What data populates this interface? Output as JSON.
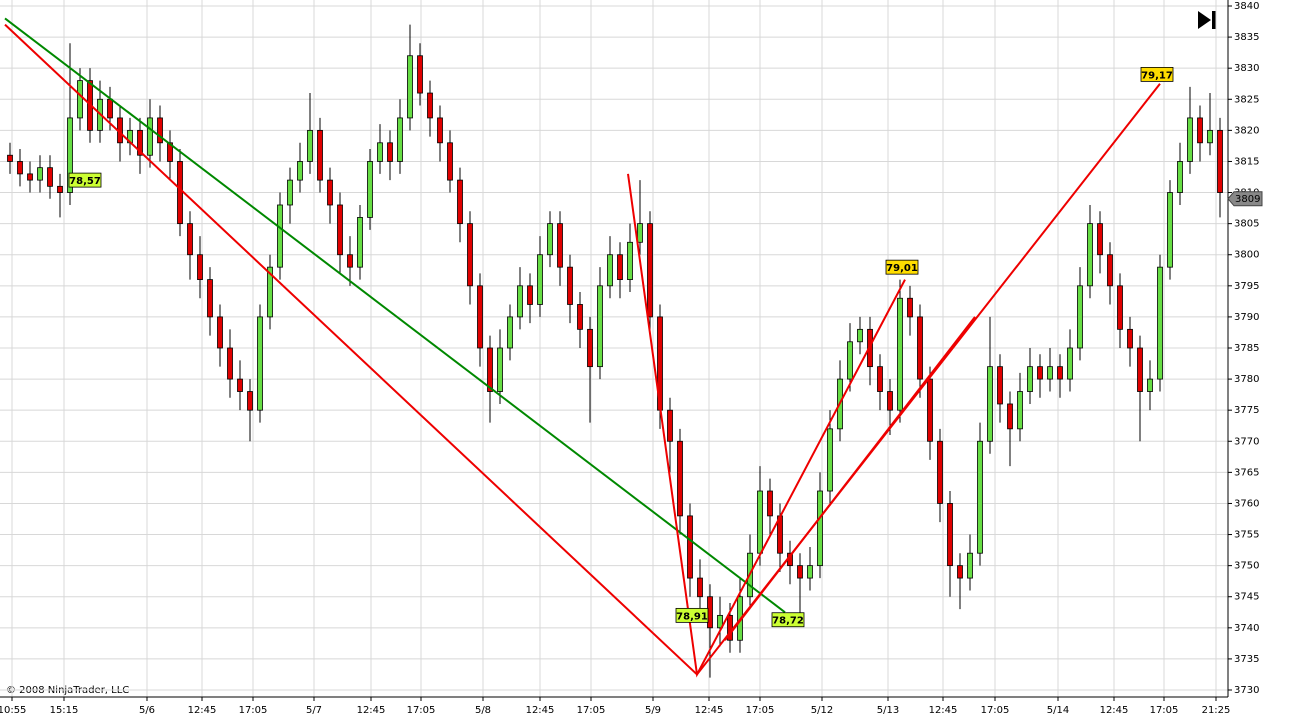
{
  "chart_data": {
    "type": "candlestick",
    "copyright": "© 2008 NinjaTrader, LLC",
    "up_color": "#66dd44",
    "down_color": "#e00000",
    "grid": true,
    "xlim": [
      -1,
      121.8
    ],
    "ylim": [
      3730,
      3840
    ],
    "yticks": [
      3730,
      3735,
      3740,
      3745,
      3750,
      3755,
      3760,
      3765,
      3770,
      3775,
      3780,
      3785,
      3790,
      3795,
      3800,
      3805,
      3810,
      3815,
      3820,
      3825,
      3830,
      3835,
      3840
    ],
    "xticks": [
      {
        "value": 0.2,
        "label": "10:55"
      },
      {
        "value": 5.4,
        "label": "15:15"
      },
      {
        "value": 13.7,
        "label": "5/6"
      },
      {
        "value": 19.2,
        "label": "12:45"
      },
      {
        "value": 24.3,
        "label": "17:05"
      },
      {
        "value": 30.4,
        "label": "5/7"
      },
      {
        "value": 36.1,
        "label": "12:45"
      },
      {
        "value": 41.1,
        "label": "17:05"
      },
      {
        "value": 47.3,
        "label": "5/8"
      },
      {
        "value": 53,
        "label": "12:45"
      },
      {
        "value": 58.1,
        "label": "17:05"
      },
      {
        "value": 64.3,
        "label": "5/9"
      },
      {
        "value": 69.9,
        "label": "12:45"
      },
      {
        "value": 75,
        "label": "17:05"
      },
      {
        "value": 81.2,
        "label": "5/12"
      },
      {
        "value": 87.8,
        "label": "5/13"
      },
      {
        "value": 93.3,
        "label": "12:45"
      },
      {
        "value": 98.5,
        "label": "17:05"
      },
      {
        "value": 104.8,
        "label": "5/14"
      },
      {
        "value": 110.4,
        "label": "12:45"
      },
      {
        "value": 115.4,
        "label": "17:05"
      },
      {
        "value": 120.6,
        "label": "21:25"
      }
    ],
    "x": [
      0,
      1,
      2,
      3,
      4,
      5,
      6,
      7,
      8,
      9,
      10,
      11,
      12,
      13,
      14,
      15,
      16,
      17,
      18,
      19,
      20,
      21,
      22,
      23,
      24,
      25,
      26,
      27,
      28,
      29,
      30,
      31,
      32,
      33,
      34,
      35,
      36,
      37,
      38,
      39,
      40,
      41,
      42,
      43,
      44,
      45,
      46,
      47,
      48,
      49,
      50,
      51,
      52,
      53,
      54,
      55,
      56,
      57,
      58,
      59,
      60,
      61,
      62,
      63,
      64,
      65,
      66,
      67,
      68,
      69,
      70,
      71,
      72,
      73,
      74,
      75,
      76,
      77,
      78,
      79,
      80,
      81,
      82,
      83,
      84,
      85,
      86,
      87,
      88,
      89,
      90,
      91,
      92,
      93,
      94,
      95,
      96,
      97,
      98,
      99,
      100,
      101,
      102,
      103,
      104,
      105,
      106,
      107,
      108,
      109,
      110,
      111,
      112,
      113,
      114,
      115,
      116,
      117,
      118,
      119,
      120,
      121
    ],
    "open": [
      3816,
      3815,
      3813,
      3812,
      3814,
      3811,
      3810,
      3822,
      3828,
      3820,
      3825,
      3822,
      3818,
      3820,
      3816,
      3822,
      3818,
      3815,
      3805,
      3800,
      3796,
      3790,
      3785,
      3780,
      3778,
      3775,
      3790,
      3798,
      3808,
      3812,
      3815,
      3820,
      3812,
      3808,
      3800,
      3798,
      3806,
      3815,
      3818,
      3815,
      3822,
      3832,
      3826,
      3822,
      3818,
      3812,
      3805,
      3795,
      3785,
      3778,
      3785,
      3790,
      3795,
      3792,
      3800,
      3805,
      3798,
      3792,
      3788,
      3782,
      3795,
      3800,
      3796,
      3802,
      3805,
      3790,
      3775,
      3770,
      3758,
      3748,
      3745,
      3740,
      3742,
      3738,
      3745,
      3752,
      3762,
      3758,
      3752,
      3750,
      3748,
      3750,
      3762,
      3772,
      3780,
      3786,
      3788,
      3782,
      3778,
      3775,
      3793,
      3790,
      3780,
      3770,
      3760,
      3750,
      3748,
      3752,
      3770,
      3782,
      3776,
      3772,
      3778,
      3782,
      3780,
      3782,
      3780,
      3785,
      3795,
      3805,
      3800,
      3795,
      3788,
      3785,
      3778,
      3780,
      3798,
      3810,
      3815,
      3822,
      3818,
      3820
    ],
    "high": [
      3818,
      3817,
      3815,
      3816,
      3816,
      3813,
      3834,
      3830,
      3830,
      3828,
      3827,
      3824,
      3822,
      3822,
      3825,
      3824,
      3820,
      3817,
      3807,
      3803,
      3798,
      3792,
      3788,
      3783,
      3780,
      3792,
      3800,
      3810,
      3814,
      3818,
      3826,
      3822,
      3814,
      3810,
      3803,
      3808,
      3817,
      3821,
      3820,
      3825,
      3837,
      3834,
      3828,
      3824,
      3820,
      3814,
      3807,
      3797,
      3787,
      3788,
      3792,
      3798,
      3797,
      3803,
      3807,
      3807,
      3800,
      3794,
      3790,
      3798,
      3803,
      3802,
      3805,
      3812,
      3807,
      3792,
      3777,
      3772,
      3760,
      3751,
      3747,
      3745,
      3744,
      3748,
      3755,
      3766,
      3764,
      3760,
      3754,
      3752,
      3753,
      3765,
      3775,
      3783,
      3789,
      3790,
      3790,
      3784,
      3780,
      3796,
      3795,
      3792,
      3782,
      3772,
      3762,
      3752,
      3755,
      3773,
      3790,
      3784,
      3778,
      3781,
      3785,
      3784,
      3785,
      3784,
      3788,
      3798,
      3808,
      3807,
      3802,
      3797,
      3790,
      3787,
      3783,
      3800,
      3812,
      3818,
      3827,
      3824,
      3826,
      3822
    ],
    "low": [
      3813,
      3811,
      3810,
      3810,
      3809,
      3806,
      3808,
      3820,
      3818,
      3818,
      3820,
      3815,
      3816,
      3813,
      3814,
      3815,
      3812,
      3803,
      3796,
      3793,
      3787,
      3782,
      3777,
      3775,
      3770,
      3773,
      3788,
      3796,
      3805,
      3810,
      3813,
      3810,
      3805,
      3797,
      3795,
      3796,
      3804,
      3813,
      3812,
      3813,
      3820,
      3824,
      3819,
      3815,
      3810,
      3802,
      3792,
      3782,
      3773,
      3776,
      3783,
      3788,
      3789,
      3790,
      3798,
      3795,
      3789,
      3785,
      3773,
      3780,
      3793,
      3793,
      3794,
      3800,
      3787,
      3772,
      3765,
      3755,
      3745,
      3742,
      3732,
      3737,
      3736,
      3736,
      3743,
      3750,
      3755,
      3749,
      3747,
      3742,
      3746,
      3748,
      3760,
      3770,
      3778,
      3784,
      3779,
      3775,
      3771,
      3773,
      3787,
      3777,
      3767,
      3757,
      3745,
      3743,
      3746,
      3750,
      3768,
      3773,
      3766,
      3770,
      3776,
      3777,
      3778,
      3777,
      3778,
      3783,
      3793,
      3797,
      3792,
      3785,
      3782,
      3770,
      3775,
      3778,
      3796,
      3808,
      3813,
      3815,
      3816,
      3806
    ],
    "close": [
      3815,
      3813,
      3812,
      3814,
      3811,
      3810,
      3822,
      3828,
      3820,
      3825,
      3822,
      3818,
      3820,
      3816,
      3822,
      3818,
      3815,
      3805,
      3800,
      3796,
      3790,
      3785,
      3780,
      3778,
      3775,
      3790,
      3798,
      3808,
      3812,
      3815,
      3820,
      3812,
      3808,
      3800,
      3798,
      3806,
      3815,
      3818,
      3815,
      3822,
      3832,
      3826,
      3822,
      3818,
      3812,
      3805,
      3795,
      3785,
      3778,
      3785,
      3790,
      3795,
      3792,
      3800,
      3805,
      3798,
      3792,
      3788,
      3782,
      3795,
      3800,
      3796,
      3802,
      3805,
      3790,
      3775,
      3770,
      3758,
      3748,
      3745,
      3740,
      3742,
      3738,
      3745,
      3752,
      3762,
      3758,
      3752,
      3750,
      3748,
      3750,
      3762,
      3772,
      3780,
      3786,
      3788,
      3782,
      3778,
      3775,
      3793,
      3790,
      3780,
      3770,
      3760,
      3750,
      3748,
      3752,
      3770,
      3782,
      3776,
      3772,
      3778,
      3782,
      3780,
      3782,
      3780,
      3785,
      3795,
      3805,
      3800,
      3795,
      3788,
      3785,
      3778,
      3780,
      3798,
      3810,
      3815,
      3822,
      3818,
      3820,
      3810
    ],
    "lines": [
      {
        "color": "#008800",
        "x": [
          -0.5,
          77.5
        ],
        "y": [
          3838,
          3742.5
        ]
      },
      {
        "color": "#ee0000",
        "x": [
          -0.5,
          68.7,
          115
        ],
        "y": [
          3837,
          3732.5,
          3827.5
        ]
      },
      {
        "color": "#ee0000",
        "x": [
          61.8,
          68.7,
          89.5
        ],
        "y": [
          3813,
          3732.5,
          3796
        ]
      },
      {
        "color": "#ee0000",
        "x": [
          71.5,
          96.5
        ],
        "y": [
          3738,
          3790
        ]
      }
    ],
    "annotations": [
      {
        "text": "78,57",
        "x": 7.5,
        "y": 3812,
        "bg": "#ccff33",
        "color": "#006600"
      },
      {
        "text": "78,91",
        "x": 68.2,
        "y": 3742,
        "bg": "#ccff33",
        "color": "#006600"
      },
      {
        "text": "78,72",
        "x": 77.8,
        "y": 3741.3,
        "bg": "#ccff33",
        "color": "#006600"
      },
      {
        "text": "79,01",
        "x": 89.2,
        "y": 3798,
        "bg": "#ffdd00",
        "color": "#cc0000"
      },
      {
        "text": "79,17",
        "x": 114.7,
        "y": 3829,
        "bg": "#ffdd00",
        "color": "#cc0000"
      }
    ],
    "last_price": 3809
  }
}
